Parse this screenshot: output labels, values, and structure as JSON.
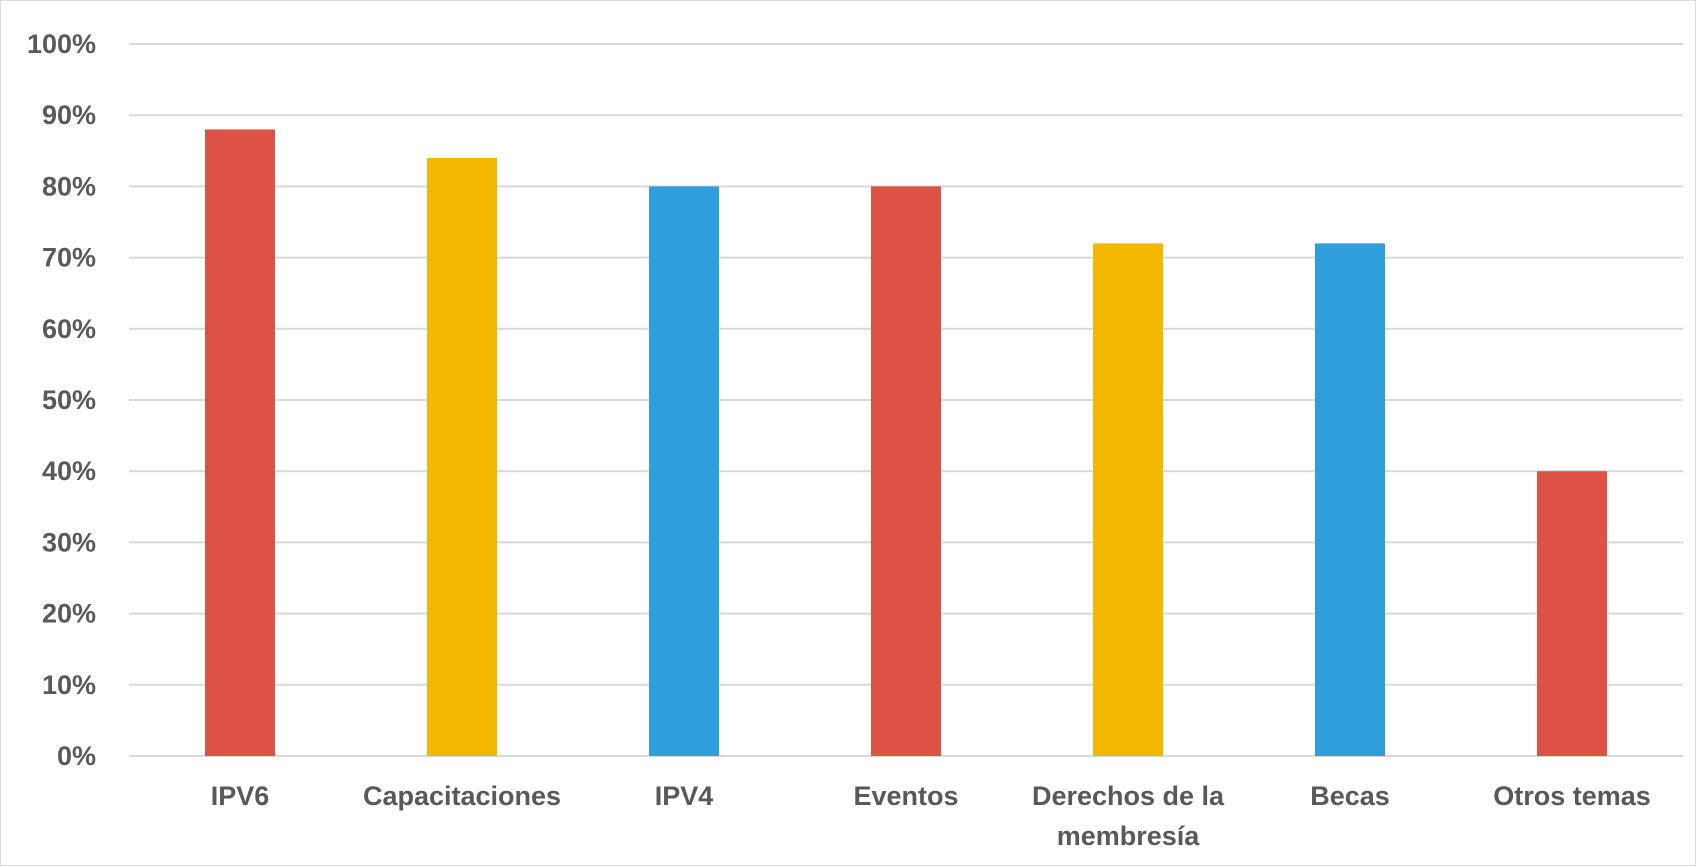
{
  "chart_data": {
    "type": "bar",
    "categories": [
      "IPV6",
      "Capacitaciones",
      "IPV4",
      "Eventos",
      "Derechos de la membresía",
      "Becas",
      "Otros temas"
    ],
    "category_label_lines": [
      [
        "IPV6"
      ],
      [
        "Capacitaciones"
      ],
      [
        "IPV4"
      ],
      [
        "Eventos"
      ],
      [
        "Derechos de la",
        "membresía"
      ],
      [
        "Becas"
      ],
      [
        "Otros temas"
      ]
    ],
    "values": [
      88,
      84,
      80,
      80,
      72,
      72,
      40
    ],
    "colors": [
      "#de5246",
      "#f4b800",
      "#2f9fdb",
      "#de5246",
      "#f4b800",
      "#2f9fdb",
      "#de5246"
    ],
    "y_ticks": [
      "0%",
      "10%",
      "20%",
      "30%",
      "40%",
      "50%",
      "60%",
      "70%",
      "80%",
      "90%",
      "100%"
    ],
    "ylim": [
      0,
      100
    ],
    "grid": true,
    "gridline_color": "#d9d9d9",
    "legend": "none"
  }
}
